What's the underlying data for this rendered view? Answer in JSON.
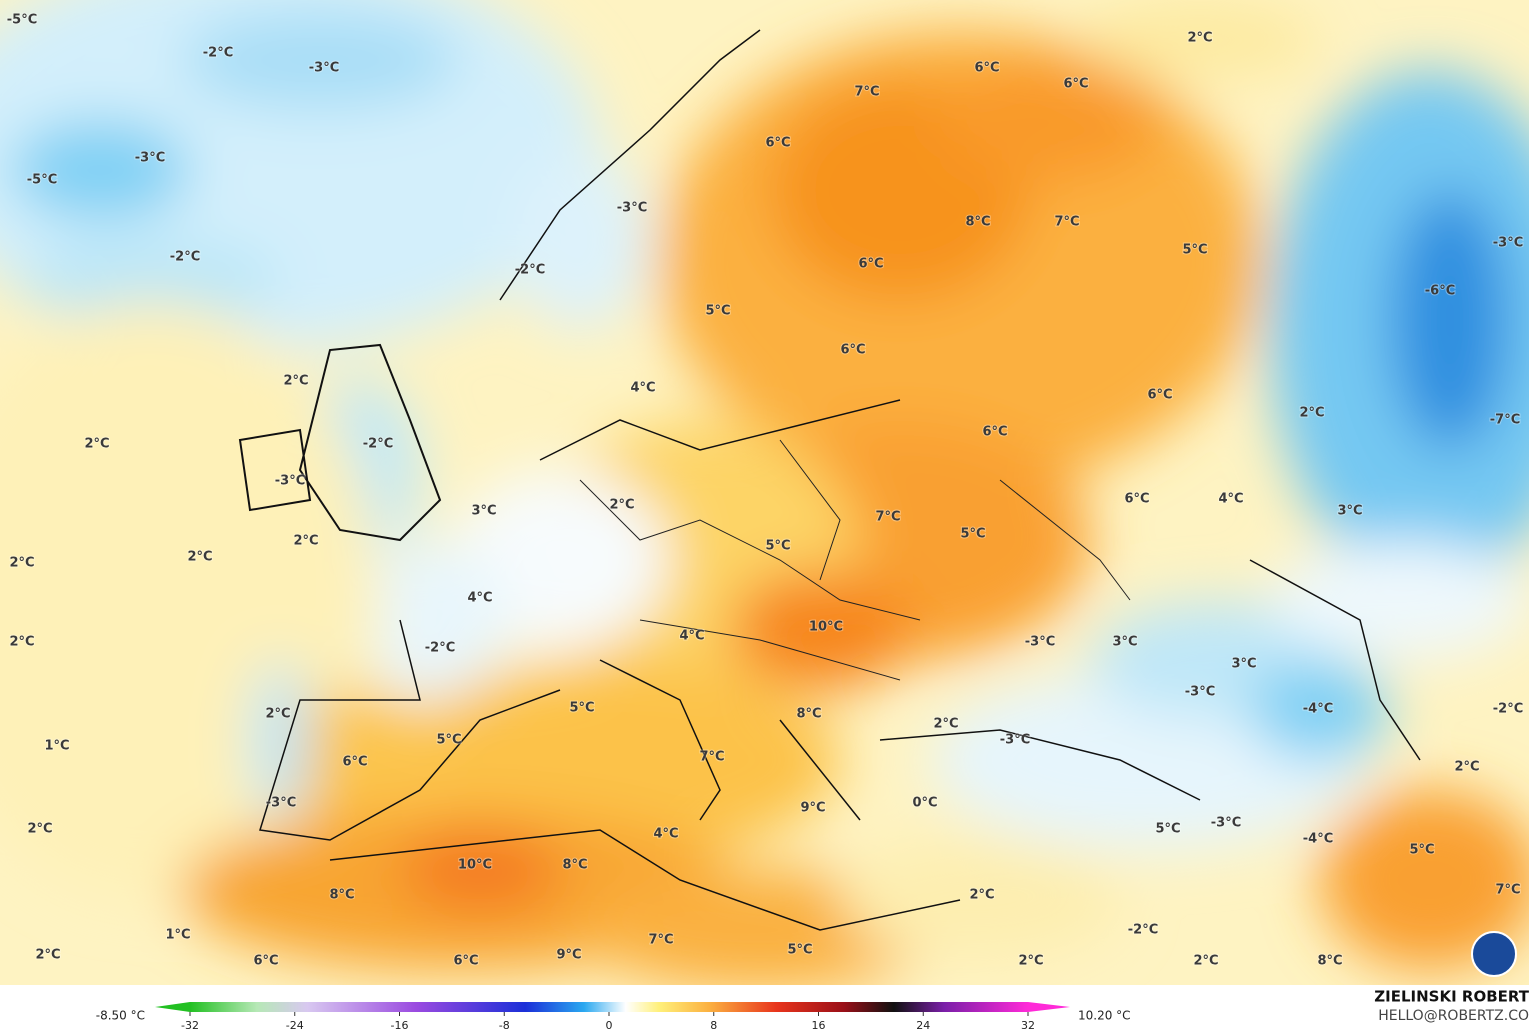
{
  "map": {
    "labels": [
      "-5°C",
      "-2°C",
      "-3°C",
      "-3°C",
      "-5°C",
      "-2°C",
      "-3°C",
      "-2°C",
      "2°C",
      "6°C",
      "6°C",
      "7°C",
      "6°C",
      "8°C",
      "7°C",
      "6°C",
      "5°C",
      "-3°C",
      "-6°C",
      "5°C",
      "6°C",
      "2°C",
      "4°C",
      "6°C",
      "2°C",
      "-7°C",
      "2°C",
      "-2°C",
      "6°C",
      "-3°C",
      "6°C",
      "4°C",
      "3°C",
      "2°C",
      "7°C",
      "3°C",
      "5°C",
      "2°C",
      "5°C",
      "2°C",
      "2°C",
      "4°C",
      "10°C",
      "4°C",
      "2°C",
      "-2°C",
      "-3°C",
      "3°C",
      "3°C",
      "-3°C",
      "2°C",
      "5°C",
      "8°C",
      "-4°C",
      "-2°C",
      "2°C",
      "5°C",
      "-3°C",
      "1°C",
      "7°C",
      "6°C",
      "2°C",
      "-3°C",
      "0°C",
      "9°C",
      "2°C",
      "5°C",
      "-3°C",
      "4°C",
      "-4°C",
      "5°C",
      "10°C",
      "8°C",
      "8°C",
      "2°C",
      "7°C",
      "1°C",
      "-2°C",
      "7°C",
      "5°C",
      "2°C",
      "9°C",
      "6°C",
      "6°C",
      "2°C",
      "2°C",
      "8°C"
    ]
  },
  "colorbar": {
    "min_label": "-8.50 °C",
    "max_label": "10.20 °C",
    "ticks": [
      -32,
      -24,
      -16,
      -8,
      0,
      8,
      16,
      24,
      32
    ],
    "range": [
      -32,
      32
    ]
  },
  "credit": {
    "author": "ZIELINSKI ROBERT",
    "email": "HELLO@ROBERTZ.CO"
  }
}
